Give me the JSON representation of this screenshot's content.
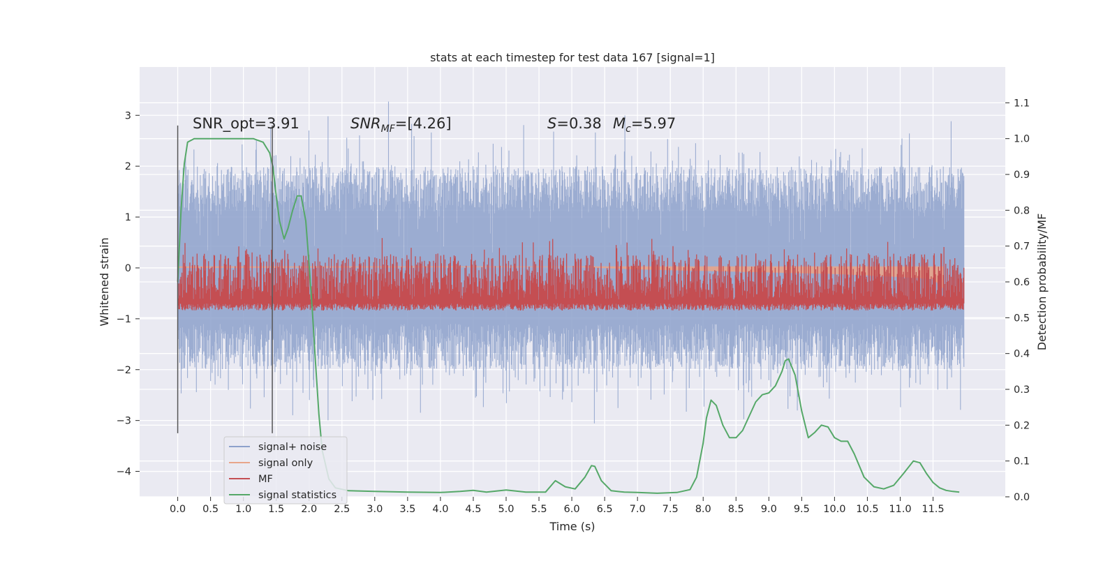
{
  "chart_data": {
    "type": "line",
    "title": "stats at each timestep for test data 167 [signal=1]",
    "xlabel": "Time (s)",
    "ylabel": "Whitened strain",
    "y2label": "Detection probability/MF",
    "xlim": [
      -0.58,
      12.6
    ],
    "ylim": [
      -4.5,
      3.95
    ],
    "y2lim": [
      -0.0,
      1.2
    ],
    "xticks": [
      0.0,
      0.5,
      1.0,
      1.5,
      2.0,
      2.5,
      3.0,
      3.5,
      4.0,
      4.5,
      5.0,
      5.5,
      6.0,
      6.5,
      7.0,
      7.5,
      8.0,
      8.5,
      9.0,
      9.5,
      10.0,
      10.5,
      11.0,
      11.5
    ],
    "xtick_labels": [
      "0.0",
      "0.5",
      "1.0",
      "1.5",
      "2.0",
      "2.5",
      "3.0",
      "3.5",
      "4.0",
      "4.5",
      "5.0",
      "5.5",
      "6.0",
      "6.5",
      "7.0",
      "7.5",
      "8.0",
      "8.5",
      "9.0",
      "9.5",
      "10.0",
      "10.5",
      "11.0",
      "11.5"
    ],
    "yticks": [
      -4,
      -3,
      -2,
      -1,
      0,
      1,
      2,
      3
    ],
    "ytick_labels": [
      "−4",
      "−3",
      "−2",
      "−1",
      "0",
      "1",
      "2",
      "3"
    ],
    "y2ticks": [
      0.0,
      0.1,
      0.2,
      0.3,
      0.4,
      0.5,
      0.6,
      0.7,
      0.8,
      0.9,
      1.0,
      1.1
    ],
    "y2tick_labels": [
      "0.0",
      "0.1",
      "0.2",
      "0.3",
      "0.4",
      "0.5",
      "0.6",
      "0.7",
      "0.8",
      "0.9",
      "1.0",
      "1.1"
    ],
    "grid": true,
    "legend_position": "lower-left",
    "vertical_markers": [
      0.0,
      1.44
    ],
    "annotations": {
      "snr_opt": "SNR_opt=3.91",
      "snr_mf_prefix": "SNR",
      "snr_mf_sub": "MF",
      "snr_mf_value": "=[4.26]",
      "s_symbol": "S",
      "s_value": "=0.38",
      "mc_symbol": "M",
      "mc_sub": "c",
      "mc_value": "=5.97"
    },
    "series": [
      {
        "name": "signal+ noise",
        "color": "#8da1cb",
        "axis": "left",
        "style": "dense noisy band",
        "x_range": [
          0.0,
          11.97
        ],
        "band_y": [
          -2.0,
          2.0
        ],
        "peak_y": [
          -4.1,
          3.6
        ]
      },
      {
        "name": "signal only",
        "color": "#e8a58a",
        "axis": "left",
        "style": "chirp, amplitude growing to merger",
        "x": [
          0.0,
          6.0,
          7.0,
          8.0,
          9.0,
          10.0,
          11.0,
          11.5,
          11.65
        ],
        "y": [
          0.0,
          0.02,
          -0.03,
          -0.06,
          -0.09,
          -0.12,
          -0.18,
          -0.22,
          -0.4
        ]
      },
      {
        "name": "MF",
        "color": "#c44e52",
        "axis": "right",
        "style": "noisy band",
        "x_range": [
          0.0,
          11.97
        ],
        "band_y2": [
          0.55,
          0.68
        ],
        "peak_y2": [
          0.52,
          0.75
        ]
      },
      {
        "name": "signal statistics",
        "color": "#55a868",
        "axis": "right",
        "x": [
          0.0,
          0.05,
          0.1,
          0.15,
          0.25,
          0.4,
          0.6,
          0.8,
          1.0,
          1.15,
          1.3,
          1.4,
          1.45,
          1.5,
          1.55,
          1.62,
          1.68,
          1.75,
          1.82,
          1.88,
          1.95,
          2.0,
          2.05,
          2.1,
          2.15,
          2.2,
          2.3,
          2.4,
          2.6,
          3.0,
          3.5,
          4.0,
          4.3,
          4.5,
          4.7,
          5.0,
          5.3,
          5.6,
          5.75,
          5.9,
          6.05,
          6.2,
          6.3,
          6.35,
          6.45,
          6.6,
          6.8,
          7.0,
          7.3,
          7.6,
          7.8,
          7.9,
          8.0,
          8.05,
          8.12,
          8.2,
          8.3,
          8.4,
          8.5,
          8.6,
          8.7,
          8.8,
          8.9,
          9.0,
          9.1,
          9.2,
          9.25,
          9.3,
          9.4,
          9.5,
          9.6,
          9.7,
          9.8,
          9.9,
          10.0,
          10.1,
          10.2,
          10.3,
          10.45,
          10.6,
          10.75,
          10.9,
          11.05,
          11.2,
          11.3,
          11.4,
          11.5,
          11.6,
          11.7,
          11.8,
          11.9
        ],
        "y": [
          0.6,
          0.8,
          0.93,
          0.99,
          1.0,
          1.0,
          1.0,
          1.0,
          1.0,
          1.0,
          0.99,
          0.96,
          0.92,
          0.84,
          0.77,
          0.72,
          0.75,
          0.8,
          0.84,
          0.84,
          0.77,
          0.65,
          0.52,
          0.37,
          0.23,
          0.13,
          0.05,
          0.025,
          0.017,
          0.015,
          0.013,
          0.012,
          0.015,
          0.018,
          0.013,
          0.019,
          0.013,
          0.013,
          0.045,
          0.028,
          0.022,
          0.055,
          0.087,
          0.085,
          0.045,
          0.017,
          0.013,
          0.012,
          0.01,
          0.012,
          0.02,
          0.055,
          0.15,
          0.22,
          0.27,
          0.255,
          0.2,
          0.165,
          0.165,
          0.185,
          0.225,
          0.265,
          0.285,
          0.29,
          0.31,
          0.35,
          0.38,
          0.385,
          0.34,
          0.24,
          0.165,
          0.18,
          0.2,
          0.195,
          0.165,
          0.155,
          0.155,
          0.12,
          0.055,
          0.028,
          0.022,
          0.032,
          0.065,
          0.1,
          0.095,
          0.065,
          0.04,
          0.025,
          0.018,
          0.015,
          0.013
        ]
      }
    ]
  }
}
